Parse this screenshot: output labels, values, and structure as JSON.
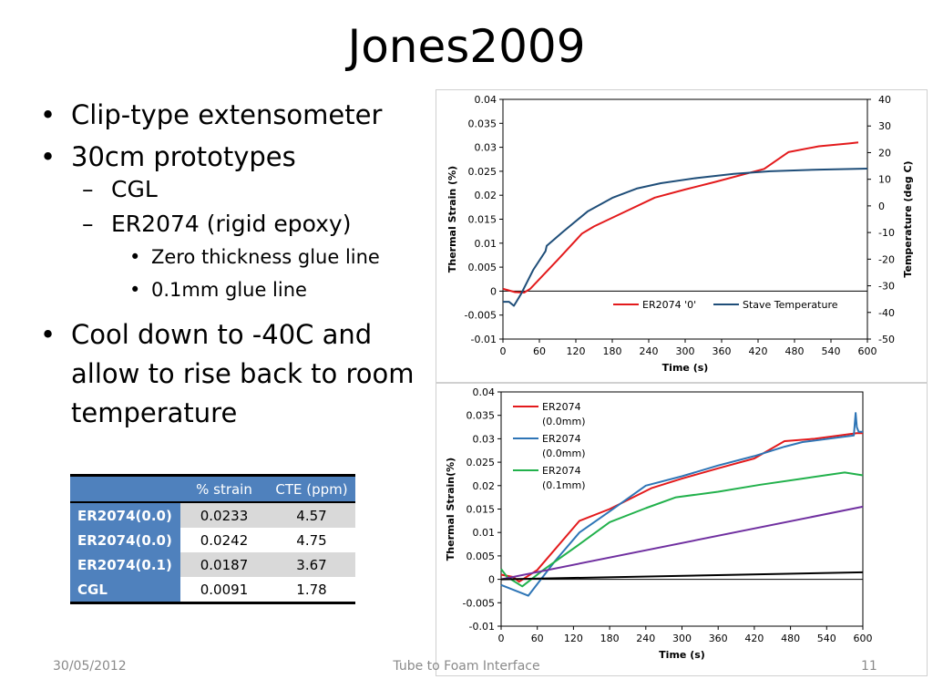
{
  "slide": {
    "title": "Jones2009",
    "bullets": [
      {
        "text": "Clip-type extensometer"
      },
      {
        "text": "30cm prototypes"
      },
      {
        "text": "CGL"
      },
      {
        "text": "ER2074 (rigid epoxy)"
      },
      {
        "text": "Zero thickness glue line"
      },
      {
        "text": "0.1mm glue line"
      },
      {
        "text": "Cool down to -40C and allow to rise back to room temperature"
      }
    ],
    "table": {
      "headers": [
        "",
        "% strain",
        "CTE (ppm)"
      ],
      "rows": [
        {
          "label": "ER2074(0.0)",
          "strain": "0.0233",
          "cte": "4.57"
        },
        {
          "label": "ER2074(0.0)",
          "strain": "0.0242",
          "cte": "4.75"
        },
        {
          "label": "ER2074(0.1)",
          "strain": "0.0187",
          "cte": "3.67"
        },
        {
          "label": "CGL",
          "strain": "0.0091",
          "cte": "1.78"
        }
      ]
    },
    "footer": {
      "date": "30/05/2012",
      "center": "Tube to Foam Interface",
      "page": "11"
    }
  },
  "chart_data": [
    {
      "type": "line",
      "xlabel": "Time (s)",
      "ylabel": "Thermal Strain (%)",
      "y2label": "Temperature (deg C)",
      "xlim": [
        0,
        600
      ],
      "ylim": [
        -0.01,
        0.04
      ],
      "y2lim": [
        -50,
        40
      ],
      "xticks": [
        "0",
        "60",
        "120",
        "180",
        "240",
        "300",
        "360",
        "420",
        "480",
        "540",
        "600"
      ],
      "yticks": [
        "-0.01",
        "-0.005",
        "0",
        "0.005",
        "0.01",
        "0.015",
        "0.02",
        "0.025",
        "0.03",
        "0.035",
        "0.04"
      ],
      "y2ticks": [
        "-50",
        "-40",
        "-30",
        "-20",
        "-10",
        "0",
        "10",
        "20",
        "30",
        "40"
      ],
      "legend_position": "lower-right",
      "series": [
        {
          "name": "ER2074 '0'",
          "axis": "left",
          "color": "#e31a1c",
          "x": [
            0,
            20,
            35,
            45,
            90,
            130,
            150,
            200,
            250,
            300,
            350,
            430,
            470,
            520,
            570,
            585
          ],
          "y": [
            0.0005,
            -0.0002,
            -0.0003,
            0.0005,
            0.0065,
            0.012,
            0.0135,
            0.0165,
            0.0195,
            0.0212,
            0.0228,
            0.0255,
            0.029,
            0.0302,
            0.0308,
            0.031
          ]
        },
        {
          "name": "Stave Temperature",
          "axis": "right",
          "color": "#1f4e79",
          "x": [
            0,
            10,
            18,
            22,
            30,
            50,
            70,
            72,
            100,
            140,
            180,
            220,
            260,
            320,
            380,
            440,
            520,
            600
          ],
          "y": [
            -36,
            -36,
            -37.5,
            -36,
            -33,
            -24,
            -17,
            -15,
            -9.5,
            -2,
            3,
            6.5,
            8.5,
            10.5,
            12,
            13,
            13.6,
            14
          ]
        }
      ]
    },
    {
      "type": "line",
      "xlabel": "Time (s)",
      "ylabel": "Thermal Strain(%)",
      "xlim": [
        0,
        600
      ],
      "ylim": [
        -0.01,
        0.04
      ],
      "xticks": [
        "0",
        "60",
        "120",
        "180",
        "240",
        "300",
        "360",
        "420",
        "480",
        "540",
        "600"
      ],
      "yticks": [
        "-0.01",
        "-0.005",
        "0",
        "0.005",
        "0.01",
        "0.015",
        "0.02",
        "0.025",
        "0.03",
        "0.035",
        "0.04"
      ],
      "legend_position": "top-left",
      "series": [
        {
          "name": "ER2074 (0.0mm)",
          "color": "#e31a1c",
          "x": [
            0,
            20,
            30,
            60,
            130,
            180,
            250,
            300,
            360,
            420,
            470,
            520,
            590,
            600
          ],
          "y": [
            0.001,
            0.0005,
            -0.0005,
            0.002,
            0.0125,
            0.015,
            0.0195,
            0.0215,
            0.0237,
            0.0258,
            0.0295,
            0.03,
            0.0312,
            0.0312
          ]
        },
        {
          "name": "ER2074 (0.0mm)",
          "color": "#2e75b6",
          "x": [
            0,
            45,
            90,
            130,
            180,
            240,
            300,
            360,
            420,
            470,
            500,
            560,
            585,
            588,
            590,
            593,
            600
          ],
          "y": [
            -0.0012,
            -0.0035,
            0.004,
            0.01,
            0.0145,
            0.02,
            0.022,
            0.0243,
            0.0263,
            0.0283,
            0.0293,
            0.0303,
            0.0307,
            0.0355,
            0.0325,
            0.0315,
            0.0315
          ]
        },
        {
          "name": "ER2074 (0.1mm)",
          "color": "#22b14c",
          "x": [
            0,
            10,
            35,
            70,
            130,
            180,
            240,
            290,
            360,
            430,
            500,
            570,
            600
          ],
          "y": [
            0.0022,
            0.0005,
            -0.0015,
            0.002,
            0.0075,
            0.0122,
            0.0152,
            0.0175,
            0.0187,
            0.0202,
            0.0215,
            0.0228,
            0.0222
          ]
        },
        {
          "color": "#7030a0",
          "x": [
            0,
            600
          ],
          "y": [
            0,
            0.0155
          ]
        },
        {
          "color": "#000000",
          "x": [
            0,
            600
          ],
          "y": [
            0,
            0.0015
          ]
        }
      ]
    }
  ]
}
